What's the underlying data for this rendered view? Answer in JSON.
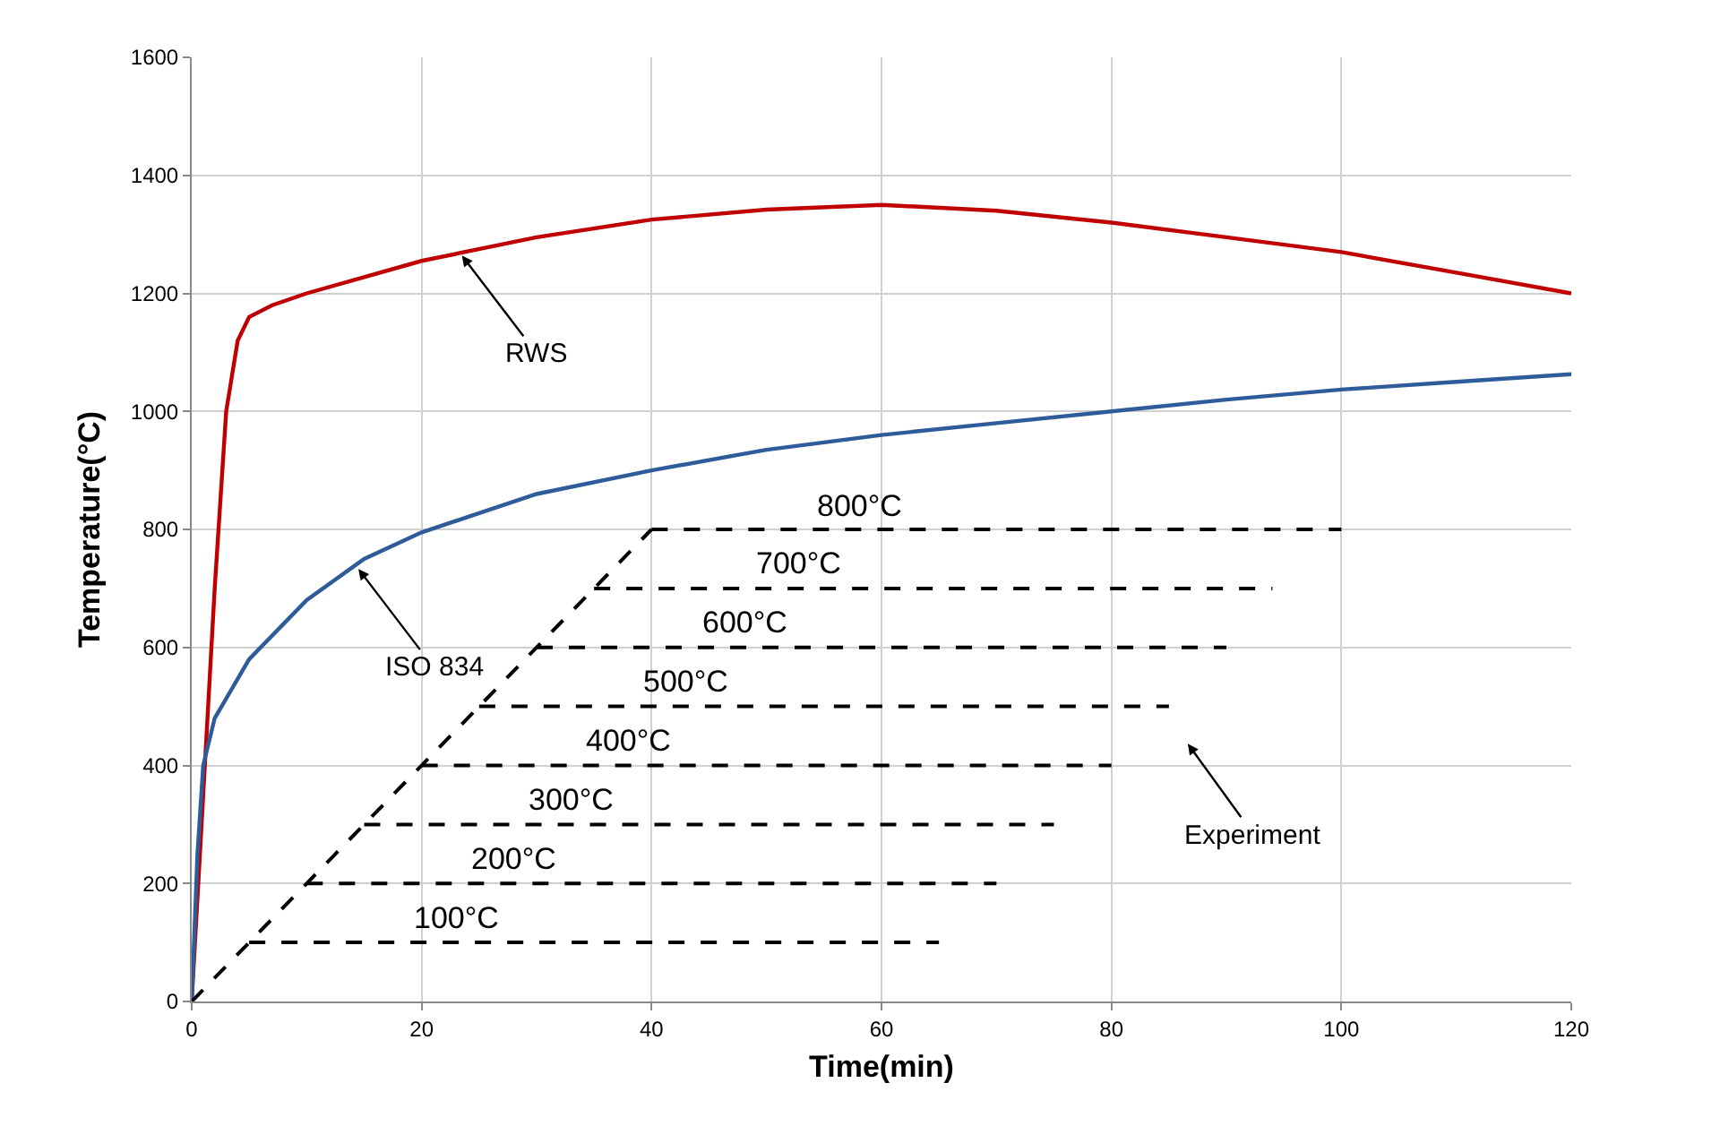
{
  "chart_data": {
    "type": "line",
    "xlabel": "Time(min)",
    "ylabel": "Temperature(°C)",
    "xlim": [
      0,
      120
    ],
    "xticks": [
      0,
      20,
      40,
      60,
      80,
      100,
      120
    ],
    "ylim": [
      0,
      1600
    ],
    "yticks": [
      0,
      200,
      400,
      600,
      800,
      1000,
      1200,
      1400,
      1600
    ],
    "grid": true,
    "legend": false,
    "marker": "none",
    "series": [
      {
        "color": "#c00000",
        "line_style": "solid",
        "x": [
          0,
          1,
          2,
          3,
          4,
          5,
          7,
          10,
          20,
          30,
          40,
          50,
          60,
          70,
          80,
          90,
          100,
          110,
          120
        ],
        "values": [
          0,
          350,
          700,
          1000,
          1120,
          1160,
          1180,
          1200,
          1255,
          1295,
          1325,
          1342,
          1350,
          1340,
          1320,
          1295,
          1270,
          1235,
          1200
        ]
      },
      {
        "color": "#2e5c9a",
        "line_style": "solid",
        "x": [
          0,
          0.5,
          1,
          2,
          5,
          10,
          15,
          20,
          30,
          40,
          50,
          60,
          70,
          80,
          90,
          100,
          110,
          120
        ],
        "values": [
          0,
          250,
          400,
          480,
          580,
          680,
          750,
          795,
          860,
          900,
          935,
          960,
          980,
          1000,
          1020,
          1037,
          1050,
          1063
        ]
      },
      {
        "color": "#000000",
        "line_style": "dashed",
        "x": [
          0,
          40
        ],
        "values": [
          0,
          800
        ]
      },
      {
        "name": "100°C",
        "color": "#000000",
        "line_style": "dashed",
        "x": [
          5,
          65
        ],
        "values": [
          100,
          100
        ]
      },
      {
        "name": "200°C",
        "color": "#000000",
        "line_style": "dashed",
        "x": [
          10,
          70
        ],
        "values": [
          200,
          200
        ]
      },
      {
        "name": "300°C",
        "color": "#000000",
        "line_style": "dashed",
        "x": [
          15,
          75
        ],
        "values": [
          300,
          300
        ]
      },
      {
        "name": "400°C",
        "color": "#000000",
        "line_style": "dashed",
        "x": [
          20,
          80
        ],
        "values": [
          400,
          400
        ]
      },
      {
        "name": "500°C",
        "color": "#000000",
        "line_style": "dashed",
        "x": [
          25,
          85
        ],
        "values": [
          500,
          500
        ]
      },
      {
        "name": "600°C",
        "color": "#000000",
        "line_style": "dashed",
        "x": [
          30,
          90
        ],
        "values": [
          600,
          600
        ]
      },
      {
        "name": "700°C",
        "color": "#000000",
        "line_style": "dashed",
        "x": [
          35,
          94
        ],
        "values": [
          700,
          700
        ]
      },
      {
        "name": "800°C",
        "color": "#000000",
        "line_style": "dashed",
        "x": [
          40,
          100
        ],
        "values": [
          800,
          800
        ]
      }
    ],
    "annotations": [
      {
        "text": "RWS",
        "x": 23.5,
        "y": 1264
      },
      {
        "text": "ISO 834",
        "x": 14.5,
        "y": 733
      },
      "Experiment"
    ]
  }
}
